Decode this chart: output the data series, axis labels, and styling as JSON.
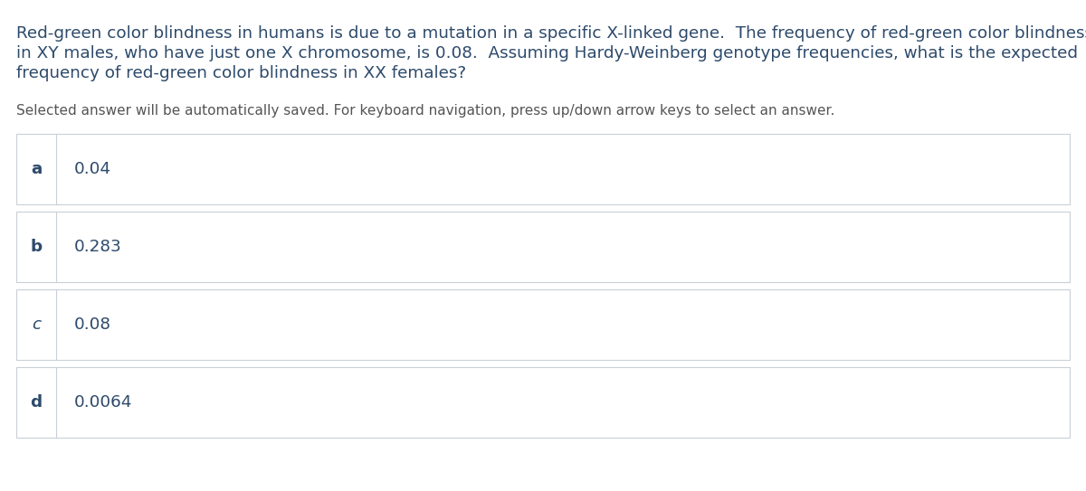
{
  "question_line1": "Red-green color blindness in humans is due to a mutation in a specific X-linked gene.  The frequency of red-green color blindness",
  "question_line2": "in XY males, who have just one X chromosome, is 0.08.  Assuming Hardy-Weinberg genotype frequencies, what is the expected",
  "question_line3": "frequency of red-green color blindness in XX females?",
  "instruction_text": "Selected answer will be automatically saved. For keyboard navigation, press up/down arrow keys to select an answer.",
  "answers": [
    {
      "letter": "a",
      "text": "0.04",
      "bold": true,
      "italic": false
    },
    {
      "letter": "b",
      "text": "0.283",
      "bold": true,
      "italic": false
    },
    {
      "letter": "c",
      "text": "0.08",
      "bold": false,
      "italic": true
    },
    {
      "letter": "d",
      "text": "0.0064",
      "bold": true,
      "italic": false
    }
  ],
  "bg_color": "#ffffff",
  "text_color": "#2d4a6b",
  "instruction_color": "#555555",
  "border_color": "#c8d0d8",
  "question_fontsize": 13.2,
  "instruction_fontsize": 11.0,
  "answer_fontsize": 13.2,
  "letter_fontsize": 13.2,
  "fig_width": 12.0,
  "fig_height": 5.43,
  "dpi": 100
}
